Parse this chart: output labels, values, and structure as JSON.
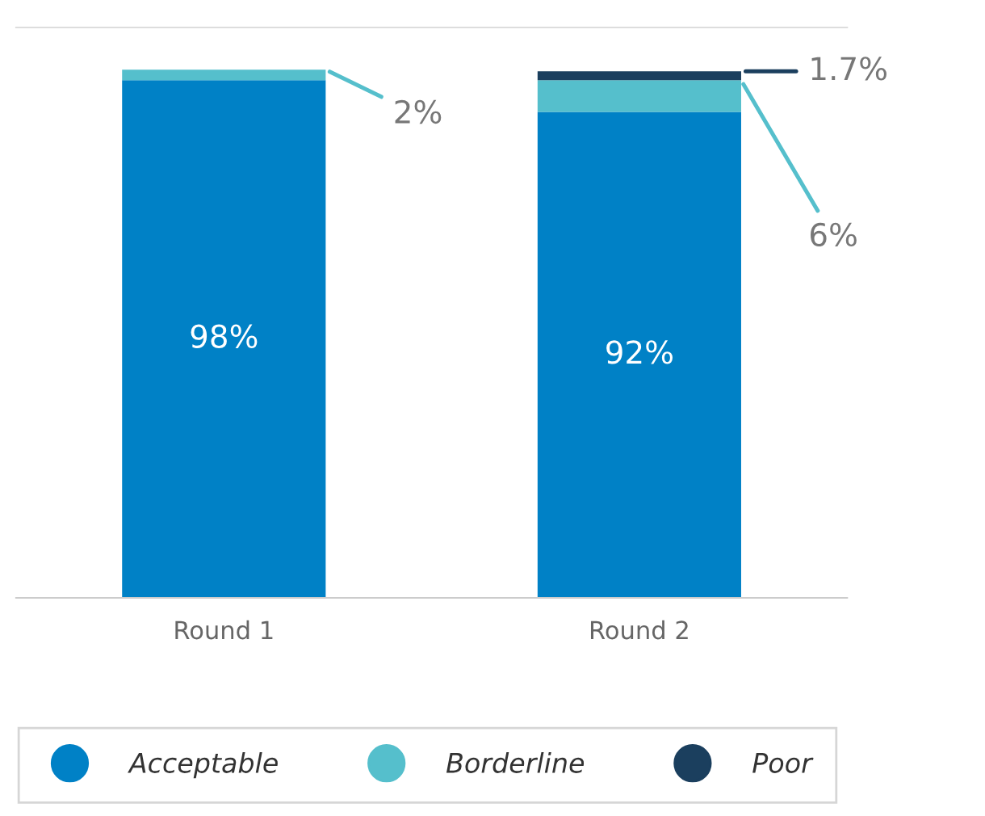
{
  "chart_data": {
    "type": "bar",
    "stacked": true,
    "categories": [
      "Round 1",
      "Round 2"
    ],
    "ylim": [
      0,
      108
    ],
    "series": [
      {
        "name": "Acceptable",
        "color": "#0081c6",
        "values": [
          98,
          92
        ],
        "value_labels": [
          "98%",
          "92%"
        ]
      },
      {
        "name": "Borderline",
        "color": "#55bfcc",
        "values": [
          2,
          6
        ],
        "value_labels": [
          "2%",
          "6%"
        ]
      },
      {
        "name": "Poor",
        "color": "#1b3f5e",
        "values": [
          null,
          1.7
        ],
        "value_labels": [
          null,
          "1.7%"
        ]
      }
    ],
    "legend": "bottom",
    "grid": false,
    "marker": "circle"
  }
}
